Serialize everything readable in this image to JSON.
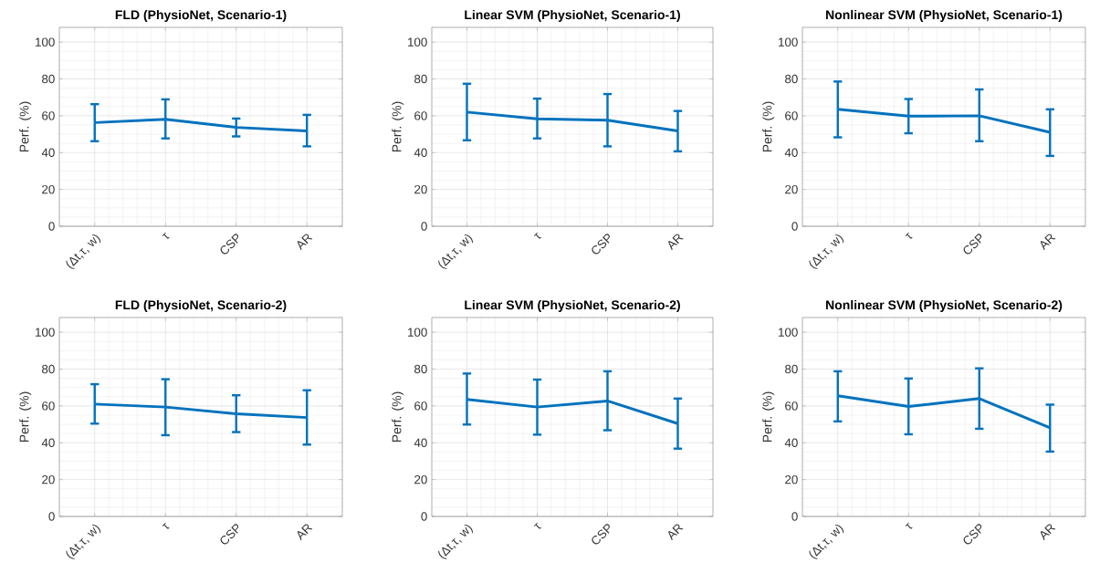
{
  "chart_data": [
    {
      "type": "line",
      "title": "FLD (PhysioNet, Scenario-1)",
      "ylabel": "Perf. (%)",
      "categories": [
        "(Δt,τ, w)",
        "τ",
        "CSP",
        "AR"
      ],
      "ylim": [
        0,
        108
      ],
      "yticks": [
        0,
        20,
        40,
        60,
        80,
        100
      ],
      "grid": true,
      "series": [
        {
          "color": "#0072bd",
          "values": [
            56.3,
            58.1,
            53.7,
            51.8
          ],
          "errors": [
            [
              46.2,
              66.3
            ],
            [
              47.7,
              68.9
            ],
            [
              48.8,
              58.5
            ],
            [
              43.4,
              60.5
            ]
          ]
        }
      ]
    },
    {
      "type": "line",
      "title": "Linear SVM (PhysioNet, Scenario-1)",
      "ylabel": "Perf. (%)",
      "categories": [
        "(Δt,τ, w)",
        "τ",
        "CSP",
        "AR"
      ],
      "ylim": [
        0,
        108
      ],
      "yticks": [
        0,
        20,
        40,
        60,
        80,
        100
      ],
      "grid": true,
      "series": [
        {
          "color": "#0072bd",
          "values": [
            62.0,
            58.3,
            57.6,
            51.8
          ],
          "errors": [
            [
              46.7,
              77.4
            ],
            [
              47.7,
              69.3
            ],
            [
              43.4,
              71.8
            ],
            [
              40.7,
              62.6
            ]
          ]
        }
      ]
    },
    {
      "type": "line",
      "title": "Nonlinear SVM (PhysioNet, Scenario-1)",
      "ylabel": "Perf. (%)",
      "categories": [
        "(Δt,τ, w)",
        "τ",
        "CSP",
        "AR"
      ],
      "ylim": [
        0,
        108
      ],
      "yticks": [
        0,
        20,
        40,
        60,
        80,
        100
      ],
      "grid": true,
      "series": [
        {
          "color": "#0072bd",
          "values": [
            63.5,
            59.8,
            60.0,
            51.0
          ],
          "errors": [
            [
              48.3,
              78.6
            ],
            [
              50.5,
              69.1
            ],
            [
              46.2,
              74.3
            ],
            [
              38.2,
              63.5
            ]
          ]
        }
      ]
    },
    {
      "type": "line",
      "title": "FLD (PhysioNet, Scenario-2)",
      "ylabel": "Perf. (%)",
      "categories": [
        "(Δt,τ, w)",
        "τ",
        "CSP",
        "AR"
      ],
      "ylim": [
        0,
        108
      ],
      "yticks": [
        0,
        20,
        40,
        60,
        80,
        100
      ],
      "grid": true,
      "series": [
        {
          "color": "#0072bd",
          "values": [
            61.0,
            59.4,
            55.7,
            53.7
          ],
          "errors": [
            [
              50.4,
              71.8
            ],
            [
              44.1,
              74.5
            ],
            [
              45.8,
              65.8
            ],
            [
              39.0,
              68.5
            ]
          ]
        }
      ]
    },
    {
      "type": "line",
      "title": "Linear SVM (PhysioNet, Scenario-2)",
      "ylabel": "Perf. (%)",
      "categories": [
        "(Δt,τ, w)",
        "τ",
        "CSP",
        "AR"
      ],
      "ylim": [
        0,
        108
      ],
      "yticks": [
        0,
        20,
        40,
        60,
        80,
        100
      ],
      "grid": true,
      "series": [
        {
          "color": "#0072bd",
          "values": [
            63.5,
            59.4,
            62.7,
            50.4
          ],
          "errors": [
            [
              49.9,
              77.6
            ],
            [
              44.4,
              74.3
            ],
            [
              46.8,
              78.8
            ],
            [
              36.8,
              64.0
            ]
          ]
        }
      ]
    },
    {
      "type": "line",
      "title": "Nonlinear SVM (PhysioNet, Scenario-2)",
      "ylabel": "Perf. (%)",
      "categories": [
        "(Δt,τ, w)",
        "τ",
        "CSP",
        "AR"
      ],
      "ylim": [
        0,
        108
      ],
      "yticks": [
        0,
        20,
        40,
        60,
        80,
        100
      ],
      "grid": true,
      "series": [
        {
          "color": "#0072bd",
          "values": [
            65.5,
            59.7,
            64.0,
            48.1
          ],
          "errors": [
            [
              51.6,
              78.8
            ],
            [
              44.6,
              74.9
            ],
            [
              47.6,
              80.4
            ],
            [
              35.2,
              60.7
            ]
          ]
        }
      ]
    }
  ]
}
